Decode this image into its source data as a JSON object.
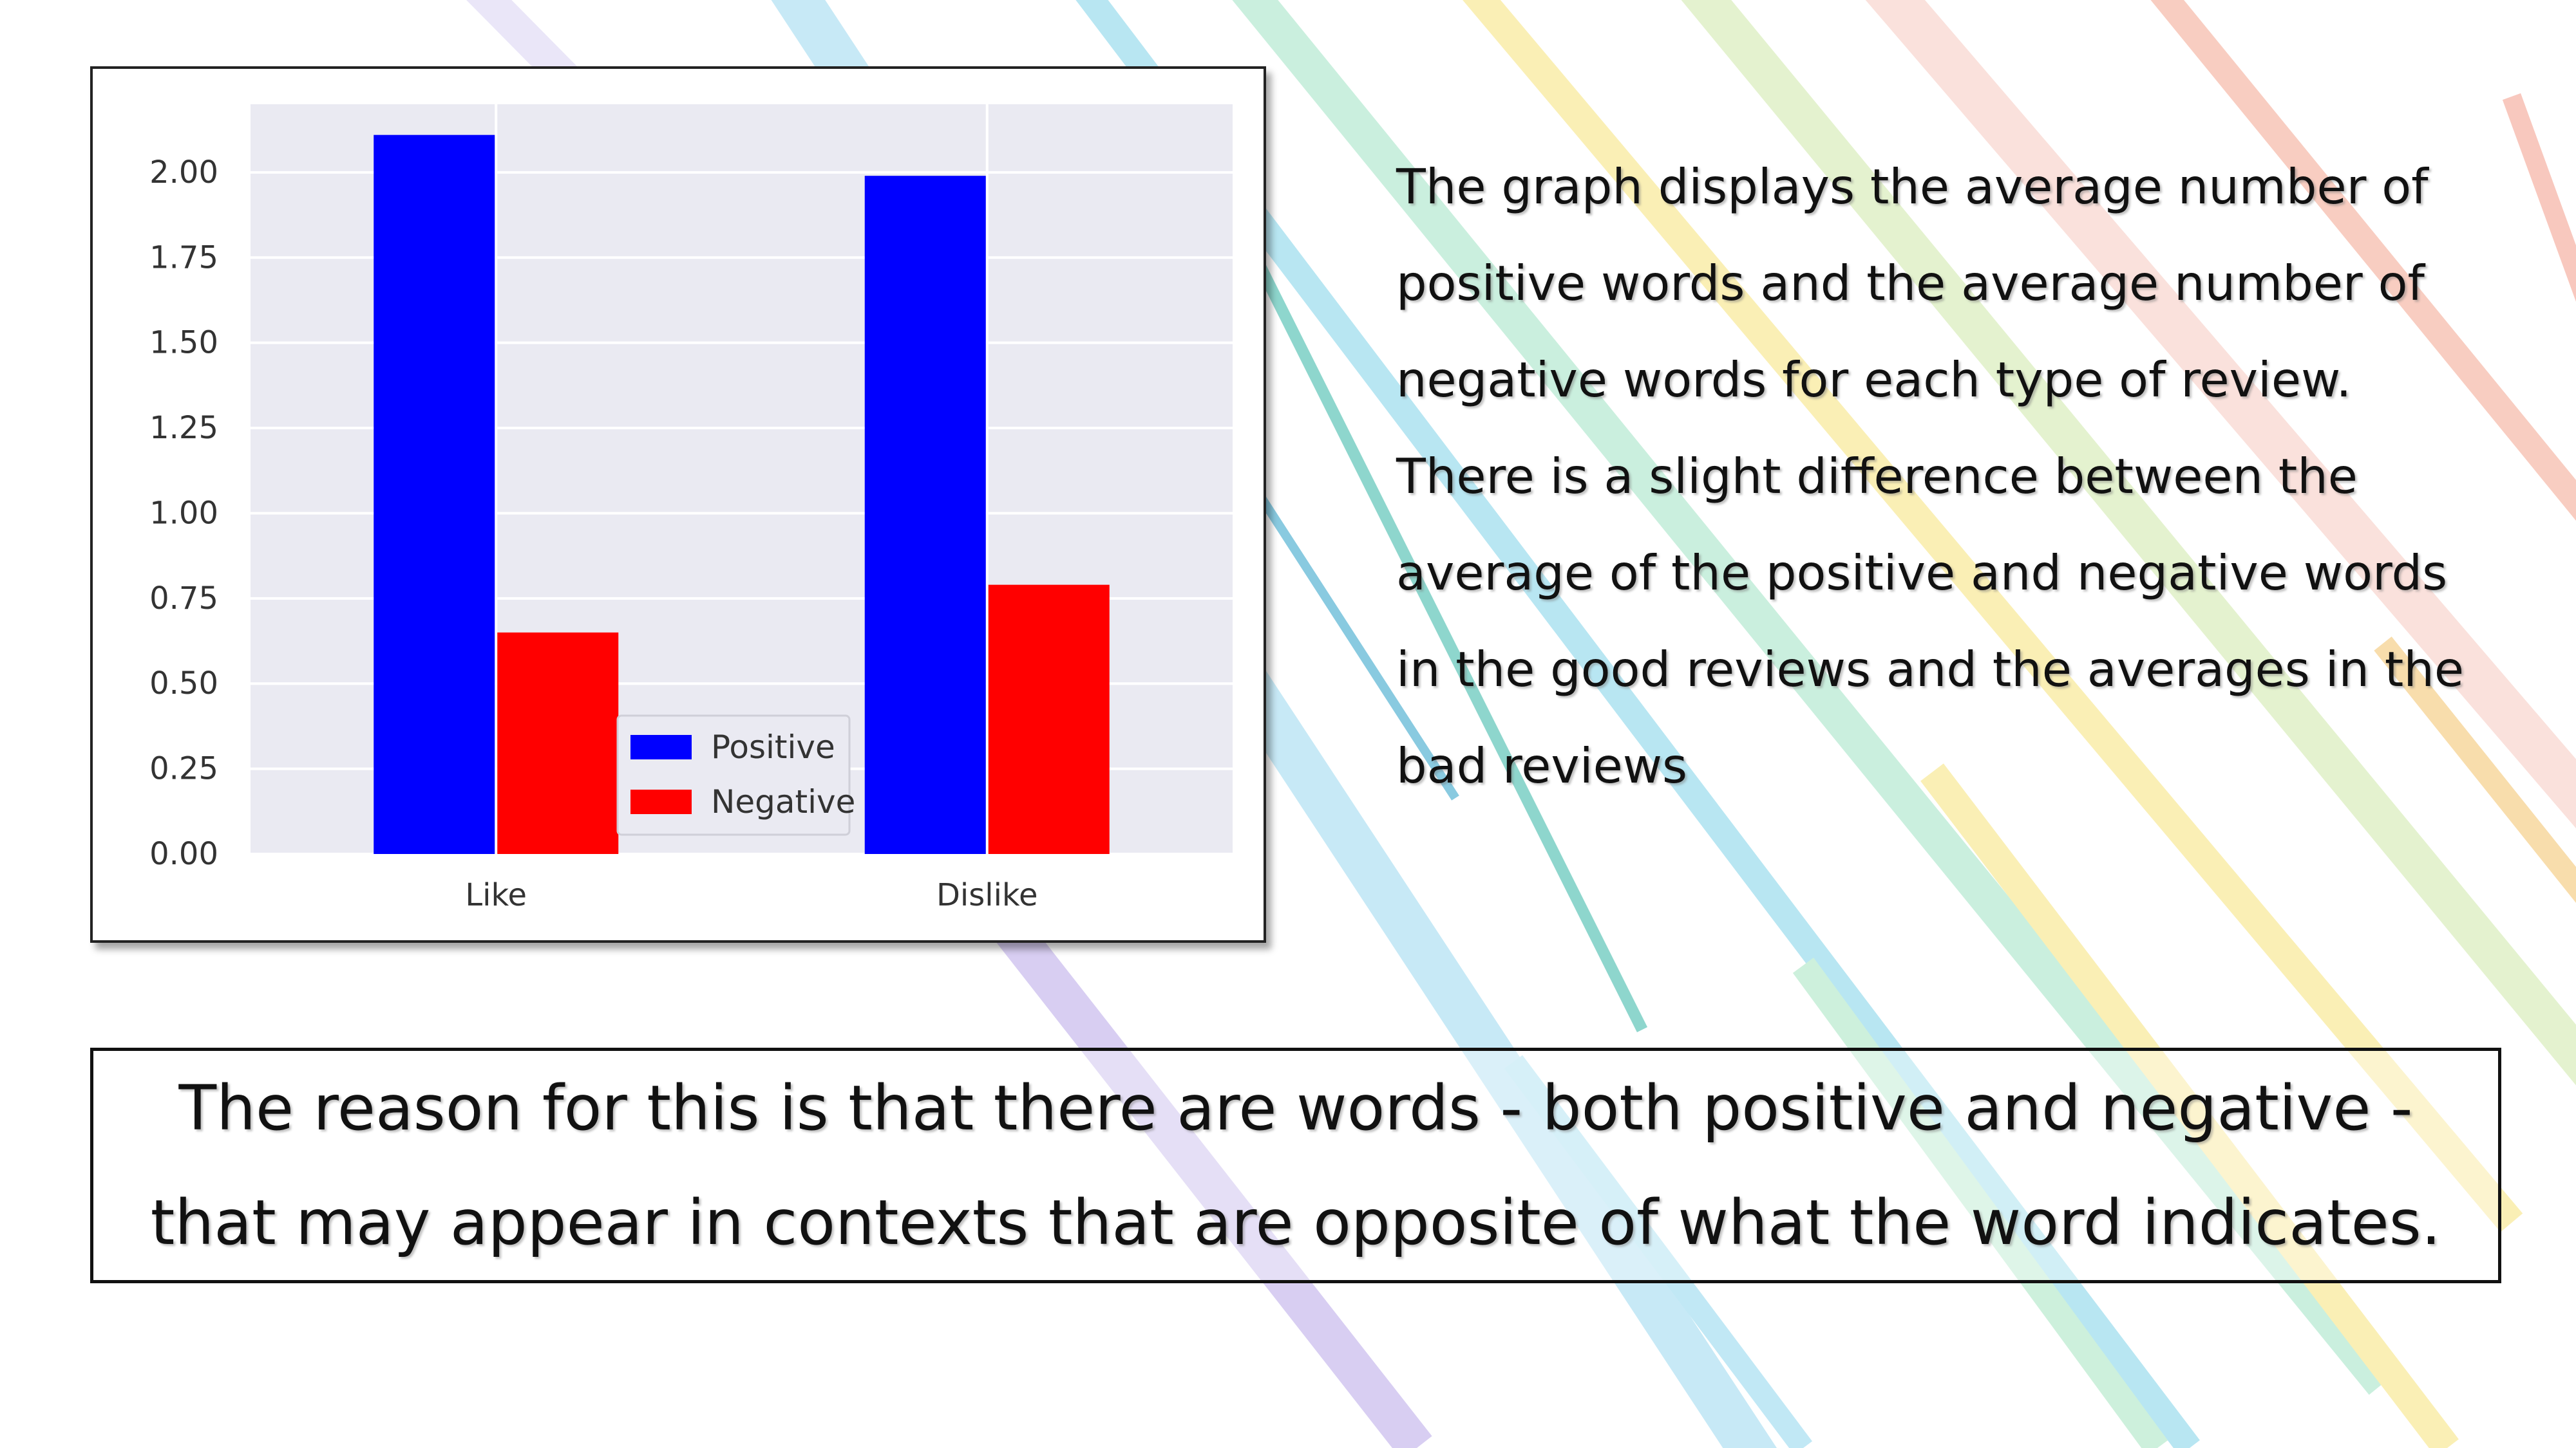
{
  "chart_data": {
    "type": "bar",
    "categories": [
      "Like",
      "Dislike"
    ],
    "series": [
      {
        "name": "Positive",
        "values": [
          2.11,
          1.99
        ],
        "color": "#0000ff"
      },
      {
        "name": "Negative",
        "values": [
          0.65,
          0.79
        ],
        "color": "#ff0000"
      }
    ],
    "yticks": [
      "0.00",
      "0.25",
      "0.50",
      "0.75",
      "1.00",
      "1.25",
      "1.50",
      "1.75",
      "2.00"
    ],
    "ylim": [
      0,
      2.2
    ],
    "grid": true,
    "legend": "lower-center",
    "title": "",
    "xlabel": "",
    "ylabel": ""
  },
  "description": {
    "paragraph1": "The graph displays the average number of positive words and the average number of negative words for each type of review.",
    "paragraph2": "There is a slight difference between the average of the positive and negative words in the good reviews and the averages in the bad reviews"
  },
  "reason": "The reason for this is that there are words - both positive and negative - that may appear in contexts that are opposite of what the word indicates."
}
